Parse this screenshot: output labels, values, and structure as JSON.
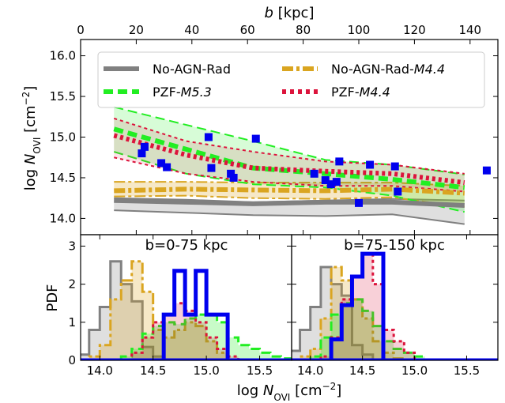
{
  "figure": {
    "top_axis_label_italic": "b",
    "top_axis_label_rest": " [kpc]",
    "top_panel_ylabel_main": "log ",
    "top_panel_ylabel_italic": "N",
    "top_panel_ylabel_sub": "OVI",
    "top_panel_ylabel_rest": " [cm",
    "top_panel_ylabel_exp": "−2",
    "top_panel_ylabel_close": "]",
    "bottom_ylabel": "PDF",
    "bottom_xlabel_main": "log ",
    "bottom_xlabel_italic": "N",
    "bottom_xlabel_sub": "OVI",
    "bottom_xlabel_rest": " [cm",
    "bottom_xlabel_exp": "−2",
    "bottom_xlabel_close": "]"
  },
  "colors": {
    "no_agn_rad": "#808080",
    "no_agn_rad_m44": "#daa520",
    "pzf_m53": "#22ee22",
    "pzf_m44": "#dc143c",
    "observations": "#0000ee"
  },
  "chart_data": [
    {
      "type": "line",
      "panel": "top",
      "xlabel": "b [kpc]",
      "ylabel": "log N_OVI [cm^-2]",
      "xlim": [
        0,
        150
      ],
      "ylim": [
        13.8,
        16.2
      ],
      "x_ticks": [
        "0",
        "20",
        "40",
        "60",
        "80",
        "100",
        "120",
        "140"
      ],
      "y_ticks": [
        "14.0",
        "14.5",
        "15.0",
        "15.5",
        "16.0"
      ],
      "legend_position": "top",
      "legend": [
        {
          "label_main": "No-AGN-Rad",
          "label_italic": "",
          "style": "solid-thick"
        },
        {
          "label_main": "No-AGN-Rad-",
          "label_italic": "M4.4",
          "style": "dashdot-thick"
        },
        {
          "label_main": "PZF-",
          "label_italic": "M5.3",
          "style": "dashed-thick"
        },
        {
          "label_main": "PZF-",
          "label_italic": "M4.4",
          "style": "dotted-thick"
        }
      ],
      "x": [
        12,
        38,
        62,
        88,
        112,
        138
      ],
      "series": [
        {
          "name": "No-AGN-Rad",
          "median": [
            14.22,
            14.2,
            14.18,
            14.2,
            14.2,
            14.16
          ],
          "lower": [
            14.1,
            14.07,
            14.04,
            14.03,
            14.05,
            13.93
          ],
          "upper": [
            14.25,
            14.23,
            14.2,
            14.22,
            14.24,
            14.22
          ]
        },
        {
          "name": "No-AGN-Rad-M4.4",
          "median": [
            14.34,
            14.36,
            14.35,
            14.34,
            14.36,
            14.31
          ],
          "lower": [
            14.27,
            14.28,
            14.25,
            14.24,
            14.26,
            14.14
          ],
          "upper": [
            14.45,
            14.45,
            14.44,
            14.44,
            14.44,
            14.4
          ]
        },
        {
          "name": "PZF-M5.3",
          "median": [
            15.1,
            14.85,
            14.62,
            14.55,
            14.48,
            14.38
          ],
          "lower": [
            14.82,
            14.55,
            14.42,
            14.38,
            14.28,
            14.08
          ],
          "upper": [
            15.37,
            15.15,
            14.95,
            14.72,
            14.66,
            14.54
          ]
        },
        {
          "name": "PZF-M4.4",
          "median": [
            15.02,
            14.78,
            14.62,
            14.58,
            14.55,
            14.44
          ],
          "lower": [
            14.75,
            14.55,
            14.45,
            14.4,
            14.4,
            14.33
          ],
          "upper": [
            15.23,
            14.95,
            14.82,
            14.7,
            14.66,
            14.55
          ]
        }
      ],
      "observations": {
        "b": [
          22,
          23,
          29,
          31,
          46,
          47,
          54,
          55,
          63,
          84,
          88,
          90,
          92,
          93,
          100,
          104,
          113,
          114,
          146
        ],
        "logN": [
          14.8,
          14.88,
          14.68,
          14.63,
          15.0,
          14.62,
          14.55,
          14.5,
          14.98,
          14.55,
          14.47,
          14.42,
          14.45,
          14.7,
          14.19,
          14.66,
          14.64,
          14.33,
          14.59
        ]
      }
    },
    {
      "type": "bar",
      "panel": "bottom-left",
      "title": "b=0-75 kpc",
      "xlim": [
        13.82,
        15.8
      ],
      "ylim": [
        0,
        3.3
      ],
      "x_ticks": [
        "14.0",
        "14.5",
        "15.0",
        "15.5"
      ],
      "y_ticks": [
        "0",
        "1",
        "2",
        "3"
      ],
      "bin_edges": [
        13.8,
        13.9,
        14.0,
        14.1,
        14.2,
        14.3,
        14.4,
        14.5,
        14.6,
        14.7,
        14.8,
        14.9,
        15.0,
        15.1,
        15.2,
        15.3,
        15.4,
        15.5,
        15.6,
        15.7,
        15.8
      ],
      "series": [
        {
          "name": "No-AGN-Rad",
          "values": [
            0.15,
            0.8,
            1.4,
            2.6,
            2.0,
            1.55,
            0.35,
            0.1,
            0,
            0,
            0,
            0,
            0,
            0,
            0,
            0,
            0,
            0,
            0,
            0
          ]
        },
        {
          "name": "No-AGN-Rad-M4.4",
          "values": [
            0,
            0.1,
            0.4,
            1.6,
            2.1,
            2.6,
            1.8,
            0.8,
            0.6,
            0.8,
            1.0,
            0.9,
            0.5,
            0.2,
            0,
            0,
            0,
            0,
            0,
            0
          ]
        },
        {
          "name": "PZF-M5.3",
          "values": [
            0,
            0,
            0,
            0,
            0.1,
            0.3,
            0.7,
            0.9,
            1.0,
            0.95,
            1.1,
            1.2,
            1.2,
            1.0,
            0.6,
            0.4,
            0.3,
            0.2,
            0.1,
            0.05
          ]
        },
        {
          "name": "PZF-M4.4",
          "values": [
            0,
            0,
            0,
            0,
            0,
            0.2,
            0.6,
            1.0,
            1.2,
            1.5,
            1.3,
            1.0,
            0.6,
            0.3,
            0.1,
            0,
            0,
            0,
            0,
            0
          ]
        },
        {
          "name": "Observations",
          "values": [
            0,
            0,
            0,
            0,
            0,
            0,
            0,
            0,
            1.2,
            2.35,
            1.2,
            2.35,
            1.2,
            1.2,
            0,
            0,
            0,
            0,
            0,
            0
          ]
        }
      ]
    },
    {
      "type": "bar",
      "panel": "bottom-right",
      "title": "b=75-150 kpc",
      "xlim": [
        13.82,
        15.8
      ],
      "ylim": [
        0,
        3.3
      ],
      "x_ticks": [
        "14.0",
        "14.5",
        "15.0",
        "15.5"
      ],
      "y_ticks": [],
      "bin_edges": [
        13.8,
        13.9,
        14.0,
        14.1,
        14.2,
        14.3,
        14.4,
        14.5,
        14.6,
        14.7,
        14.8,
        14.9,
        15.0,
        15.1,
        15.2,
        15.3,
        15.4,
        15.5,
        15.6,
        15.7,
        15.8
      ],
      "series": [
        {
          "name": "No-AGN-Rad",
          "values": [
            0.25,
            0.8,
            1.4,
            2.45,
            2.0,
            1.7,
            0.4,
            0.15,
            0,
            0,
            0,
            0,
            0,
            0,
            0,
            0,
            0,
            0,
            0,
            0
          ]
        },
        {
          "name": "No-AGN-Rad-M4.4",
          "values": [
            0,
            0.1,
            0.3,
            1.1,
            2.45,
            2.1,
            1.6,
            1.1,
            0.5,
            0.2,
            0.05,
            0,
            0,
            0,
            0,
            0,
            0,
            0,
            0,
            0
          ]
        },
        {
          "name": "PZF-M5.3",
          "values": [
            0,
            0,
            0.1,
            0.6,
            1.2,
            1.5,
            1.6,
            1.3,
            0.9,
            0.5,
            0.3,
            0.2,
            0.1,
            0,
            0,
            0,
            0,
            0,
            0,
            0
          ]
        },
        {
          "name": "PZF-M4.4",
          "values": [
            0,
            0,
            0,
            0.1,
            0.6,
            1.6,
            2.2,
            2.8,
            2.0,
            0.8,
            0.5,
            0.2,
            0,
            0,
            0,
            0,
            0,
            0,
            0,
            0
          ]
        },
        {
          "name": "Observations",
          "values": [
            0,
            0,
            0,
            0,
            0.55,
            1.45,
            2.2,
            2.8,
            2.8,
            0,
            0,
            0,
            0,
            0,
            0,
            0,
            0,
            0,
            0,
            0
          ]
        }
      ]
    }
  ]
}
